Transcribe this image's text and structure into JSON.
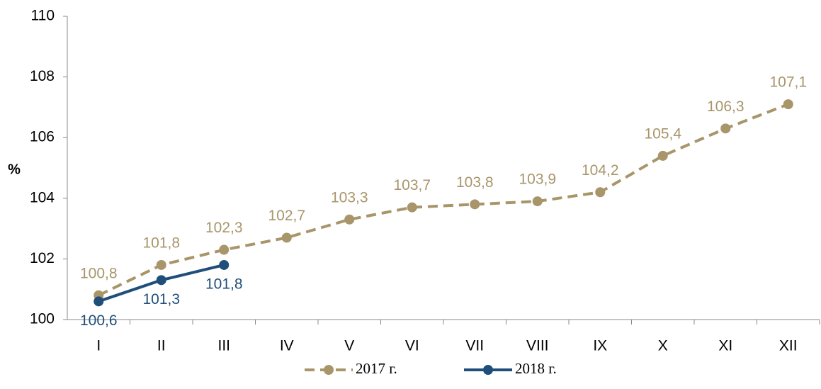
{
  "chart_data": {
    "type": "line",
    "y_label": "%",
    "categories": [
      "I",
      "II",
      "III",
      "IV",
      "V",
      "VI",
      "VII",
      "VIII",
      "IX",
      "X",
      "XI",
      "XII"
    ],
    "series": [
      {
        "name": "2017 г.",
        "color": "#a8956a",
        "dashed": true,
        "values": [
          100.8,
          101.8,
          102.3,
          102.7,
          103.3,
          103.7,
          103.8,
          103.9,
          104.2,
          105.4,
          106.3,
          107.1
        ],
        "value_labels": [
          "100,8",
          "101,8",
          "102,3",
          "102,7",
          "103,3",
          "103,7",
          "103,8",
          "103,9",
          "104,2",
          "105,4",
          "106,3",
          "107,1"
        ],
        "label_position": "above"
      },
      {
        "name": "2018 г.",
        "color": "#1f4e7a",
        "dashed": false,
        "values": [
          100.6,
          101.3,
          101.8,
          null,
          null,
          null,
          null,
          null,
          null,
          null,
          null,
          null
        ],
        "value_labels": [
          "100,6",
          "101,3",
          "101,8",
          null,
          null,
          null,
          null,
          null,
          null,
          null,
          null,
          null
        ],
        "label_position": "below"
      }
    ],
    "ylim": [
      100,
      110
    ],
    "yticks": [
      100,
      102,
      104,
      106,
      108,
      110
    ],
    "grid": false,
    "legend": "bottom"
  }
}
